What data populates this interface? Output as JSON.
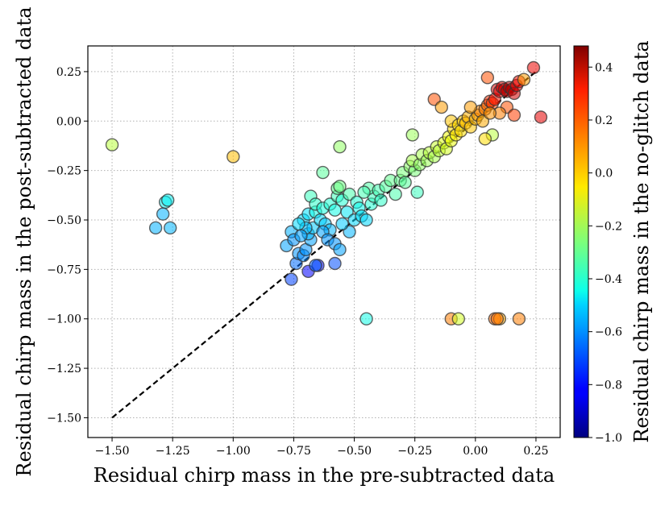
{
  "chart_data": {
    "type": "scatter",
    "title": "",
    "xlabel": "Residual chirp mass in the pre-subtracted data",
    "ylabel": "Residual chirp mass in the post-subtracted data",
    "colorbar_label": "Residual chirp mass in the no-glitch data",
    "xlim": [
      -1.6,
      0.35
    ],
    "ylim": [
      -1.6,
      0.38
    ],
    "xticks": [
      -1.5,
      -1.25,
      -1.0,
      -0.75,
      -0.5,
      -0.25,
      0.0,
      0.25
    ],
    "xtick_labels": [
      "−1.50",
      "−1.25",
      "−1.00",
      "−0.75",
      "−0.50",
      "−0.25",
      "0.00",
      "0.25"
    ],
    "yticks": [
      -1.5,
      -1.25,
      -1.0,
      -0.75,
      -0.5,
      -0.25,
      0.0,
      0.25
    ],
    "ytick_labels": [
      "−1.50",
      "−1.25",
      "−1.00",
      "−0.75",
      "−0.50",
      "−0.25",
      "0.00",
      "0.25"
    ],
    "colorbar_range": [
      -1.0,
      0.48
    ],
    "colorbar_ticks": [
      -1.0,
      -0.8,
      -0.6,
      -0.4,
      -0.2,
      0.0,
      0.2,
      0.4
    ],
    "colorbar_tick_labels": [
      "−1.0",
      "−0.8",
      "−0.6",
      "−0.4",
      "−0.2",
      "0.0",
      "0.2",
      "0.4"
    ],
    "colormap": "jet",
    "grid": true,
    "reference_line": {
      "style": "dashed",
      "color": "#000000",
      "x": [
        -1.5,
        0.25
      ],
      "y": [
        -1.5,
        0.25
      ]
    },
    "points": [
      [
        -1.5,
        -0.12,
        -0.15
      ],
      [
        -1.0,
        -0.18,
        0.05
      ],
      [
        -0.56,
        -0.13,
        -0.22
      ],
      [
        -0.63,
        -0.26,
        -0.32
      ],
      [
        -1.28,
        -0.41,
        -0.47
      ],
      [
        -1.27,
        -0.4,
        -0.47
      ],
      [
        -1.29,
        -0.47,
        -0.56
      ],
      [
        -1.32,
        -0.54,
        -0.56
      ],
      [
        -1.26,
        -0.54,
        -0.55
      ],
      [
        -0.78,
        -0.63,
        -0.58
      ],
      [
        -0.76,
        -0.56,
        -0.56
      ],
      [
        -0.75,
        -0.6,
        -0.6
      ],
      [
        -0.74,
        -0.72,
        -0.66
      ],
      [
        -0.73,
        -0.67,
        -0.6
      ],
      [
        -0.76,
        -0.8,
        -0.72
      ],
      [
        -0.69,
        -0.76,
        -0.84
      ],
      [
        -0.65,
        -0.73,
        -0.8
      ],
      [
        -0.66,
        -0.73,
        -0.68
      ],
      [
        -0.58,
        -0.72,
        -0.7
      ],
      [
        -0.71,
        -0.68,
        -0.62
      ],
      [
        -0.7,
        -0.65,
        -0.6
      ],
      [
        -0.68,
        -0.6,
        -0.58
      ],
      [
        -0.69,
        -0.57,
        -0.55
      ],
      [
        -0.67,
        -0.54,
        -0.52
      ],
      [
        -0.71,
        -0.5,
        -0.5
      ],
      [
        -0.69,
        -0.47,
        -0.49
      ],
      [
        -0.7,
        -0.54,
        -0.54
      ],
      [
        -0.72,
        -0.58,
        -0.58
      ],
      [
        -0.73,
        -0.52,
        -0.5
      ],
      [
        -0.66,
        -0.46,
        -0.45
      ],
      [
        -0.64,
        -0.5,
        -0.5
      ],
      [
        -0.62,
        -0.52,
        -0.52
      ],
      [
        -0.6,
        -0.55,
        -0.55
      ],
      [
        -0.63,
        -0.56,
        -0.58
      ],
      [
        -0.61,
        -0.6,
        -0.6
      ],
      [
        -0.58,
        -0.62,
        -0.6
      ],
      [
        -0.56,
        -0.65,
        -0.58
      ],
      [
        -0.68,
        -0.38,
        -0.38
      ],
      [
        -0.66,
        -0.42,
        -0.4
      ],
      [
        -0.63,
        -0.44,
        -0.44
      ],
      [
        -0.6,
        -0.42,
        -0.42
      ],
      [
        -0.58,
        -0.45,
        -0.45
      ],
      [
        -0.57,
        -0.38,
        -0.37
      ],
      [
        -0.55,
        -0.4,
        -0.42
      ],
      [
        -0.53,
        -0.46,
        -0.48
      ],
      [
        -0.5,
        -0.5,
        -0.5
      ],
      [
        -0.52,
        -0.56,
        -0.55
      ],
      [
        -0.55,
        -0.52,
        -0.52
      ],
      [
        -0.57,
        -0.34,
        -0.3
      ],
      [
        -0.56,
        -0.33,
        -0.28
      ],
      [
        -0.52,
        -0.37,
        -0.35
      ],
      [
        -0.49,
        -0.41,
        -0.42
      ],
      [
        -0.48,
        -0.44,
        -0.46
      ],
      [
        -0.47,
        -0.48,
        -0.49
      ],
      [
        -0.45,
        -0.5,
        -0.5
      ],
      [
        -0.43,
        -0.42,
        -0.42
      ],
      [
        -0.42,
        -0.38,
        -0.38
      ],
      [
        -0.44,
        -0.34,
        -0.34
      ],
      [
        -0.46,
        -0.36,
        -0.36
      ],
      [
        -0.4,
        -0.35,
        -0.36
      ],
      [
        -0.39,
        -0.4,
        -0.4
      ],
      [
        -0.37,
        -0.33,
        -0.33
      ],
      [
        -0.35,
        -0.3,
        -0.3
      ],
      [
        -0.33,
        -0.37,
        -0.35
      ],
      [
        -0.31,
        -0.3,
        -0.3
      ],
      [
        -0.3,
        -0.26,
        -0.26
      ],
      [
        -0.29,
        -0.31,
        -0.32
      ],
      [
        -0.27,
        -0.23,
        -0.23
      ],
      [
        -0.25,
        -0.25,
        -0.26
      ],
      [
        -0.26,
        -0.2,
        -0.18
      ],
      [
        -0.24,
        -0.36,
        -0.38
      ],
      [
        -0.26,
        -0.07,
        -0.2
      ],
      [
        -0.23,
        -0.22,
        -0.22
      ],
      [
        -0.22,
        -0.17,
        -0.18
      ],
      [
        -0.2,
        -0.2,
        -0.2
      ],
      [
        -0.19,
        -0.16,
        -0.15
      ],
      [
        -0.17,
        -0.18,
        -0.18
      ],
      [
        -0.16,
        -0.13,
        -0.12
      ],
      [
        -0.15,
        -0.15,
        -0.14
      ],
      [
        -0.13,
        -0.11,
        -0.08
      ],
      [
        -0.12,
        -0.14,
        -0.1
      ],
      [
        -0.11,
        -0.08,
        -0.05
      ],
      [
        -0.1,
        -0.1,
        -0.06
      ],
      [
        -0.09,
        -0.04,
        0.0
      ],
      [
        -0.1,
        0.0,
        0.04
      ],
      [
        -0.08,
        -0.07,
        -0.02
      ],
      [
        -0.07,
        -0.02,
        0.0
      ],
      [
        -0.06,
        -0.05,
        0.0
      ],
      [
        -0.05,
        0.0,
        0.03
      ],
      [
        -0.04,
        -0.01,
        0.05
      ],
      [
        -0.03,
        0.02,
        0.07
      ],
      [
        -0.02,
        -0.03,
        0.04
      ],
      [
        0.0,
        0.01,
        0.06
      ],
      [
        0.01,
        0.03,
        0.1
      ],
      [
        0.02,
        0.05,
        0.14
      ],
      [
        0.03,
        0.0,
        0.08
      ],
      [
        0.04,
        0.06,
        0.15
      ],
      [
        0.05,
        0.08,
        0.2
      ],
      [
        0.06,
        0.1,
        0.28
      ],
      [
        0.07,
        0.09,
        0.25
      ],
      [
        0.08,
        0.11,
        0.32
      ],
      [
        0.09,
        0.16,
        0.36
      ],
      [
        0.1,
        0.15,
        0.35
      ],
      [
        0.11,
        0.17,
        0.36
      ],
      [
        0.12,
        0.16,
        0.38
      ],
      [
        0.13,
        0.15,
        0.4
      ],
      [
        0.14,
        0.17,
        0.42
      ],
      [
        0.15,
        0.16,
        0.41
      ],
      [
        0.16,
        0.14,
        0.38
      ],
      [
        0.17,
        0.18,
        0.36
      ],
      [
        0.18,
        0.2,
        0.33
      ],
      [
        0.2,
        0.21,
        0.1
      ],
      [
        0.24,
        0.27,
        0.34
      ],
      [
        0.27,
        0.02,
        0.35
      ],
      [
        0.13,
        0.07,
        0.22
      ],
      [
        0.16,
        0.03,
        0.25
      ],
      [
        0.1,
        0.04,
        0.15
      ],
      [
        0.07,
        -0.07,
        -0.15
      ],
      [
        0.04,
        -0.09,
        0.0
      ],
      [
        0.05,
        0.22,
        0.22
      ],
      [
        -0.17,
        0.11,
        0.22
      ],
      [
        -0.14,
        0.07,
        0.1
      ],
      [
        -0.02,
        0.07,
        0.1
      ],
      [
        0.06,
        0.04,
        0.12
      ],
      [
        -0.45,
        -1.0,
        -0.45
      ],
      [
        -0.1,
        -1.0,
        0.15
      ],
      [
        -0.07,
        -1.0,
        -0.1
      ],
      [
        0.08,
        -1.0,
        0.18
      ],
      [
        0.1,
        -1.0,
        0.08
      ],
      [
        0.09,
        -1.0,
        0.17
      ],
      [
        0.18,
        -1.0,
        0.15
      ]
    ]
  }
}
